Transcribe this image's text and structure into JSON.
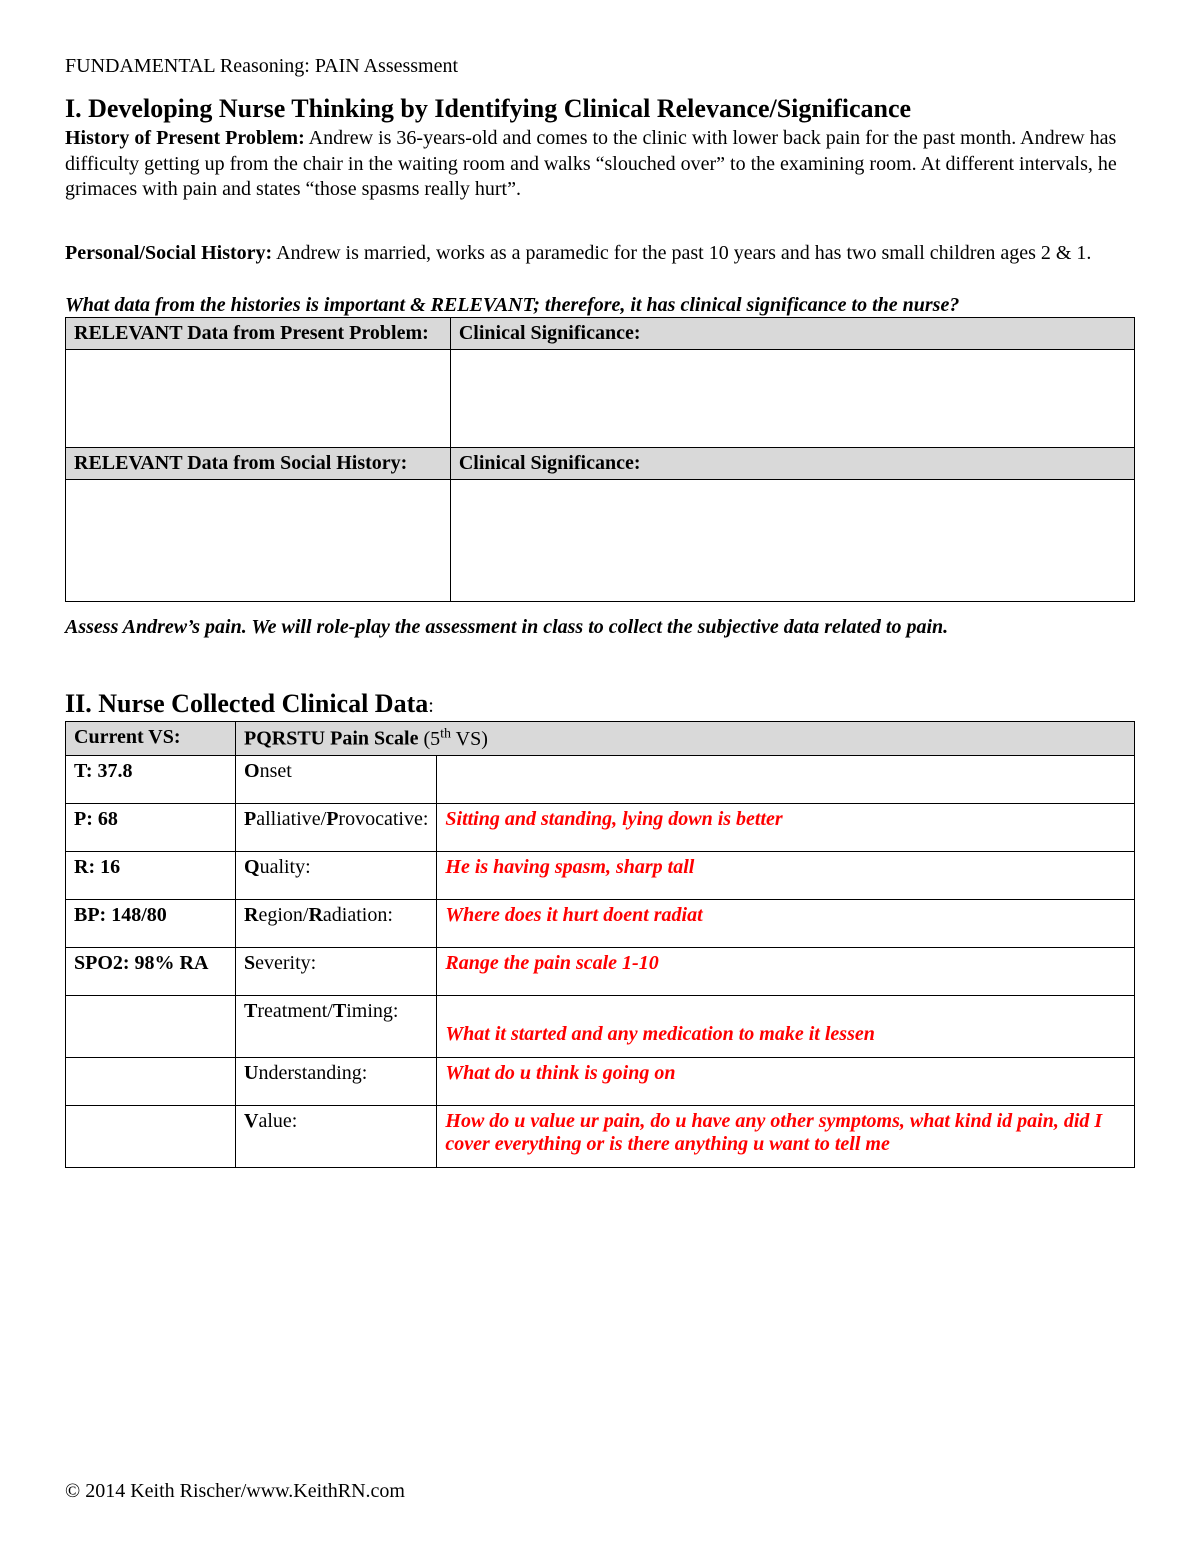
{
  "header": "FUNDAMENTAL Reasoning: PAIN Assessment",
  "section1": {
    "title": "I. Developing Nurse Thinking by Identifying Clinical Relevance/Significance",
    "hpp_label": "History of Present Problem:",
    "hpp_text": " Andrew is 36-years-old and comes to the clinic with lower back pain for the past month.  Andrew has difficulty getting up from the chair in the waiting room and walks “slouched over” to the examining room.  At different intervals, he grimaces with pain and states “those spasms really hurt”.",
    "psh_label": "Personal/Social History:",
    "psh_text": " Andrew is married, works as a paramedic for the past 10 years and has two small children ages 2 & 1.",
    "prompt": "What data from the histories is important & RELEVANT; therefore, it has clinical significance to the nurse?",
    "table": {
      "h1": "RELEVANT Data from Present Problem:",
      "h2": "Clinical Significance:",
      "h3": "RELEVANT Data from Social History:",
      "h4": "Clinical Significance:"
    },
    "assess_note": "Assess Andrew’s pain. We will role-play the assessment in class to collect the subjective data related to pain."
  },
  "section2": {
    "title": "II. Nurse Collected Clinical Data",
    "th1": "Current VS:",
    "th2_a": "PQRSTU Pain Scale ",
    "th2_b": "(5",
    "th2_sup": "th",
    "th2_c": " VS)",
    "rows": [
      {
        "vs": "T: 37.8",
        "pq_b": "O",
        "pq_r": "nset",
        "ans": ""
      },
      {
        "vs": "P: 68",
        "pq_b": "P",
        "pq_r": "alliative/",
        "pq_b2": "P",
        "pq_r2": "rovocative:",
        "ans": "Sitting and standing, lying down is better"
      },
      {
        "vs": "R: 16",
        "pq_b": "Q",
        "pq_r": "uality:",
        "ans": "He is having spasm, sharp tall"
      },
      {
        "vs": "BP: 148/80",
        "pq_b": "R",
        "pq_r": "egion/",
        "pq_b2": "R",
        "pq_r2": "adiation:",
        "ans": "Where does it hurt doent radiat"
      },
      {
        "vs": "SPO2: 98% RA",
        "pq_b": "S",
        "pq_r": "everity:",
        "ans": "Range the pain scale 1-10"
      },
      {
        "vs": "",
        "pq_b": "T",
        "pq_r": "reatment/",
        "pq_b2": "T",
        "pq_r2": "iming:",
        "ans": "What it started and any medication to make it lessen",
        "tall": true
      },
      {
        "vs": "",
        "pq_b": "U",
        "pq_r": "nderstanding:",
        "ans": "What do u think is going on"
      },
      {
        "vs": "",
        "pq_b": "V",
        "pq_r": "alue:",
        "ans": "How do u value ur pain, do u have any other symptoms, what kind id pain, did I cover everything or is there anything u want to tell me",
        "tall": true
      }
    ]
  },
  "footer": "© 2014 Keith Rischer/www.KeithRN.com"
}
